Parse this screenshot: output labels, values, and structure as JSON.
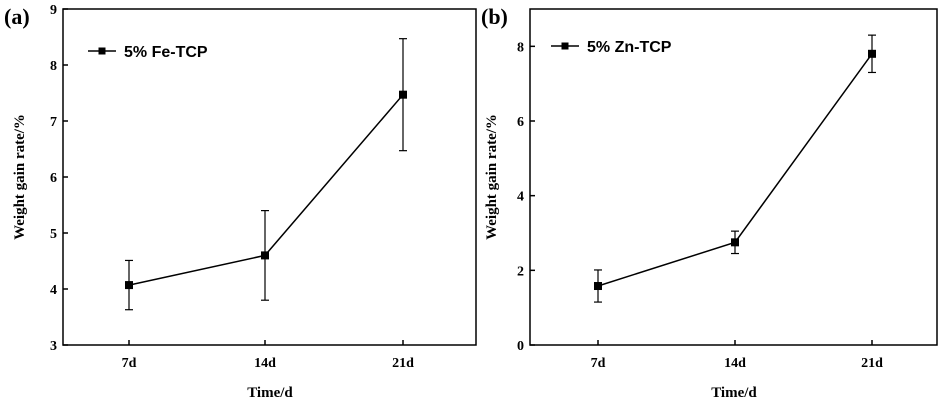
{
  "chart_data": [
    {
      "panel_label": "(a)",
      "type": "line",
      "categories": [
        "7d",
        "14d",
        "21d"
      ],
      "series": [
        {
          "name": "5% Fe-TCP",
          "values": [
            4.07,
            4.6,
            7.47
          ],
          "errors": [
            0.44,
            0.8,
            1.0
          ]
        }
      ],
      "xlabel": "Time/d",
      "ylabel": "Weight gain rate/%",
      "ylim": [
        3,
        9
      ],
      "yticks": [
        "3",
        "4",
        "5",
        "6",
        "7",
        "8",
        "9"
      ],
      "grid": false,
      "legend_position": "top-left",
      "color": "#000000"
    },
    {
      "panel_label": "(b)",
      "type": "line",
      "categories": [
        "7d",
        "14d",
        "21d"
      ],
      "series": [
        {
          "name": "5% Zn-TCP",
          "values": [
            1.58,
            2.75,
            7.8
          ],
          "errors": [
            0.43,
            0.3,
            0.5
          ]
        }
      ],
      "xlabel": "Time/d",
      "ylabel": "Weight gain rate/%",
      "ylim": [
        0,
        9
      ],
      "yticks": [
        "0",
        "2",
        "4",
        "6",
        "8"
      ],
      "grid": false,
      "legend_position": "top-left",
      "color": "#000000"
    }
  ]
}
